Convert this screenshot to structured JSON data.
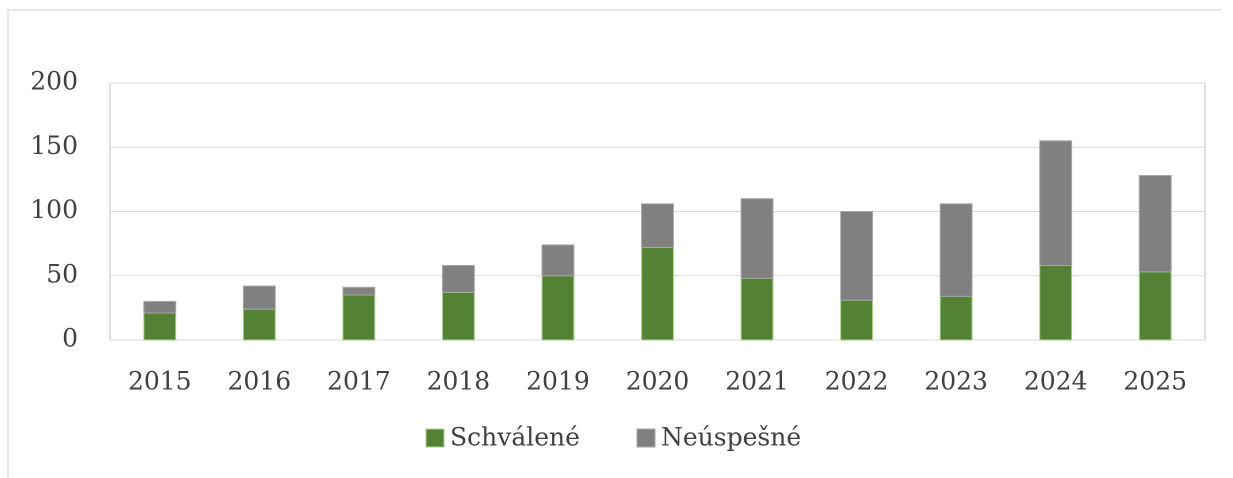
{
  "chart_data": {
    "type": "stacked_bar",
    "categories": [
      "2015",
      "2016",
      "2017",
      "2018",
      "2019",
      "2020",
      "2021",
      "2022",
      "2023",
      "2024",
      "2025"
    ],
    "series": [
      {
        "name": "Schválené",
        "color": "#548235",
        "values": [
          21,
          24,
          35,
          37,
          50,
          72,
          48,
          31,
          34,
          58,
          53
        ]
      },
      {
        "name": "Neúspešné",
        "color": "#808080",
        "values": [
          9,
          18,
          6,
          21,
          24,
          34,
          62,
          69,
          72,
          97,
          75
        ]
      }
    ],
    "ylim": [
      0,
      200
    ],
    "yticks": [
      0,
      50,
      100,
      150,
      200
    ],
    "grid": true,
    "legend": "bottom"
  }
}
